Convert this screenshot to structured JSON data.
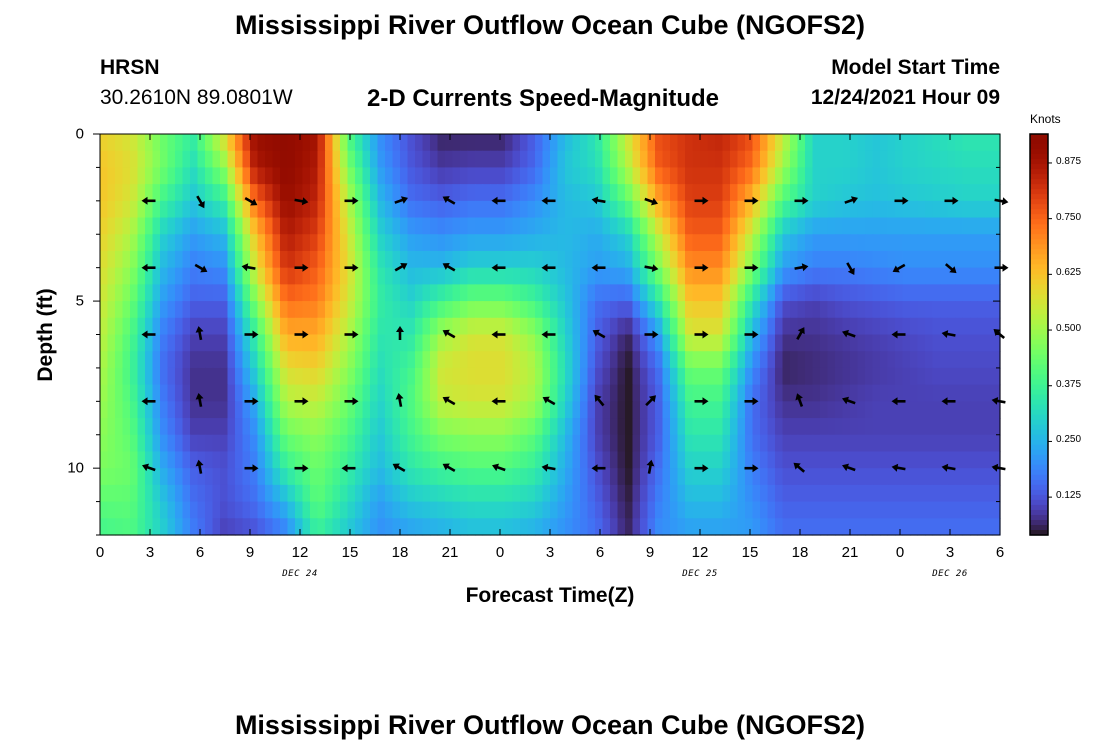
{
  "page_title": "Mississippi River Outflow Ocean Cube (NGOFS2)",
  "station": {
    "code": "HRSN",
    "coords": "30.2610N  89.0801W"
  },
  "subtitle": "2-D Currents Speed-Magnitude",
  "model_start": {
    "label": "Model Start Time",
    "value": "12/24/2021 Hour 09"
  },
  "second_panel_title": "Mississippi River Outflow Ocean Cube (NGOFS2)",
  "chart_data": {
    "type": "heatmap",
    "title": "2-D Currents Speed-Magnitude",
    "xlabel": "Forecast Time(Z)",
    "ylabel": "Depth (ft)",
    "x_tick_labels": [
      "0",
      "3",
      "6",
      "9",
      "12",
      "15",
      "18",
      "21",
      "0",
      "3",
      "6",
      "9",
      "12",
      "15",
      "18",
      "21",
      "0",
      "3",
      "6"
    ],
    "x_tick_hours": [
      0,
      3,
      6,
      9,
      12,
      15,
      18,
      21,
      24,
      27,
      30,
      33,
      36,
      39,
      42,
      45,
      48,
      51,
      54
    ],
    "day_labels": [
      {
        "text": "DEC 24",
        "hour": 12
      },
      {
        "text": "DEC 25",
        "hour": 36
      },
      {
        "text": "DEC 26",
        "hour": 51
      }
    ],
    "y_tick_labels": [
      "0",
      "5",
      "10"
    ],
    "y_tick_values": [
      0,
      5,
      10
    ],
    "xlim_hours": [
      0,
      54
    ],
    "ylim_ft": [
      0,
      12
    ],
    "y_inverted": true,
    "colorbar": {
      "title": "Knots",
      "range": [
        0.04,
        0.94
      ],
      "ticks": [
        "0.125",
        "0.250",
        "0.375",
        "0.500",
        "0.625",
        "0.750",
        "0.875"
      ],
      "tick_values": [
        0.125,
        0.25,
        0.375,
        0.5,
        0.625,
        0.75,
        0.875
      ],
      "colormap": "turbo"
    },
    "depths_ft": [
      0,
      1,
      2,
      3,
      4,
      5,
      6,
      7,
      8,
      9,
      10,
      11,
      12
    ],
    "speed_knots_by_depth": [
      [
        0.6,
        0.56,
        0.44,
        0.36,
        0.58,
        0.9,
        0.92,
        0.88,
        0.4,
        0.2,
        0.12,
        0.06,
        0.06,
        0.06,
        0.14,
        0.26,
        0.34,
        0.56,
        0.78,
        0.82,
        0.84,
        0.78,
        0.55,
        0.3,
        0.3,
        0.28,
        0.3,
        0.32,
        0.34,
        0.34
      ],
      [
        0.62,
        0.58,
        0.45,
        0.32,
        0.48,
        0.86,
        0.92,
        0.86,
        0.46,
        0.22,
        0.13,
        0.09,
        0.1,
        0.1,
        0.15,
        0.28,
        0.32,
        0.52,
        0.76,
        0.82,
        0.82,
        0.74,
        0.5,
        0.3,
        0.3,
        0.28,
        0.3,
        0.31,
        0.32,
        0.32
      ],
      [
        0.62,
        0.56,
        0.38,
        0.28,
        0.36,
        0.74,
        0.9,
        0.84,
        0.52,
        0.26,
        0.16,
        0.14,
        0.16,
        0.16,
        0.2,
        0.26,
        0.28,
        0.42,
        0.66,
        0.8,
        0.8,
        0.64,
        0.4,
        0.3,
        0.28,
        0.27,
        0.28,
        0.29,
        0.3,
        0.3
      ],
      [
        0.6,
        0.52,
        0.3,
        0.22,
        0.26,
        0.62,
        0.86,
        0.8,
        0.56,
        0.3,
        0.22,
        0.2,
        0.22,
        0.22,
        0.24,
        0.26,
        0.24,
        0.3,
        0.54,
        0.76,
        0.76,
        0.54,
        0.28,
        0.22,
        0.22,
        0.22,
        0.22,
        0.22,
        0.22,
        0.22
      ],
      [
        0.58,
        0.48,
        0.26,
        0.18,
        0.2,
        0.56,
        0.82,
        0.76,
        0.58,
        0.34,
        0.26,
        0.26,
        0.3,
        0.3,
        0.3,
        0.26,
        0.22,
        0.24,
        0.46,
        0.7,
        0.7,
        0.46,
        0.22,
        0.18,
        0.18,
        0.19,
        0.2,
        0.2,
        0.2,
        0.2
      ],
      [
        0.56,
        0.44,
        0.22,
        0.14,
        0.14,
        0.46,
        0.74,
        0.72,
        0.56,
        0.36,
        0.3,
        0.38,
        0.44,
        0.44,
        0.38,
        0.28,
        0.16,
        0.14,
        0.34,
        0.62,
        0.62,
        0.34,
        0.12,
        0.1,
        0.12,
        0.13,
        0.14,
        0.14,
        0.14,
        0.14
      ],
      [
        0.54,
        0.4,
        0.18,
        0.1,
        0.1,
        0.36,
        0.66,
        0.66,
        0.52,
        0.34,
        0.34,
        0.5,
        0.56,
        0.56,
        0.48,
        0.3,
        0.14,
        0.06,
        0.22,
        0.56,
        0.56,
        0.26,
        0.08,
        0.08,
        0.09,
        0.1,
        0.11,
        0.12,
        0.12,
        0.12
      ],
      [
        0.52,
        0.38,
        0.16,
        0.08,
        0.08,
        0.3,
        0.58,
        0.6,
        0.48,
        0.32,
        0.38,
        0.56,
        0.58,
        0.58,
        0.52,
        0.32,
        0.12,
        0.04,
        0.16,
        0.44,
        0.44,
        0.2,
        0.06,
        0.07,
        0.08,
        0.09,
        0.1,
        0.11,
        0.11,
        0.11
      ],
      [
        0.5,
        0.4,
        0.18,
        0.08,
        0.08,
        0.24,
        0.52,
        0.54,
        0.44,
        0.3,
        0.4,
        0.54,
        0.56,
        0.56,
        0.5,
        0.3,
        0.1,
        0.04,
        0.14,
        0.38,
        0.38,
        0.16,
        0.08,
        0.08,
        0.09,
        0.1,
        0.1,
        0.1,
        0.1,
        0.1
      ],
      [
        0.48,
        0.42,
        0.2,
        0.1,
        0.1,
        0.2,
        0.44,
        0.48,
        0.4,
        0.28,
        0.38,
        0.46,
        0.48,
        0.48,
        0.42,
        0.26,
        0.1,
        0.04,
        0.14,
        0.34,
        0.34,
        0.16,
        0.1,
        0.1,
        0.1,
        0.1,
        0.1,
        0.1,
        0.1,
        0.1
      ],
      [
        0.46,
        0.44,
        0.24,
        0.14,
        0.12,
        0.18,
        0.36,
        0.44,
        0.36,
        0.26,
        0.34,
        0.38,
        0.4,
        0.4,
        0.36,
        0.24,
        0.12,
        0.04,
        0.16,
        0.3,
        0.3,
        0.18,
        0.12,
        0.12,
        0.12,
        0.12,
        0.12,
        0.12,
        0.12,
        0.12
      ],
      [
        0.42,
        0.42,
        0.28,
        0.16,
        0.12,
        0.16,
        0.26,
        0.42,
        0.32,
        0.22,
        0.28,
        0.3,
        0.32,
        0.32,
        0.3,
        0.22,
        0.14,
        0.05,
        0.18,
        0.26,
        0.26,
        0.2,
        0.14,
        0.14,
        0.14,
        0.14,
        0.14,
        0.14,
        0.14,
        0.14
      ],
      [
        0.38,
        0.4,
        0.3,
        0.18,
        0.1,
        0.12,
        0.18,
        0.36,
        0.28,
        0.2,
        0.22,
        0.24,
        0.26,
        0.26,
        0.24,
        0.2,
        0.16,
        0.06,
        0.2,
        0.22,
        0.22,
        0.22,
        0.16,
        0.16,
        0.16,
        0.16,
        0.16,
        0.16,
        0.16,
        0.16
      ]
    ],
    "vector_depths_ft": [
      2,
      4,
      6,
      8,
      10
    ],
    "vector_hours": [
      3,
      6,
      9,
      12,
      15,
      18,
      21,
      24,
      27,
      30,
      33,
      36,
      39,
      42,
      45,
      48,
      51,
      54
    ],
    "vector_directions_deg": [
      [
        180,
        -60,
        -30,
        -10,
        0,
        20,
        150,
        180,
        180,
        170,
        -20,
        0,
        0,
        0,
        20,
        0,
        0,
        -10
      ],
      [
        180,
        -30,
        170,
        0,
        0,
        30,
        150,
        180,
        180,
        180,
        -10,
        0,
        0,
        10,
        -60,
        -150,
        -40,
        0
      ],
      [
        180,
        100,
        0,
        0,
        0,
        90,
        150,
        180,
        180,
        150,
        0,
        0,
        0,
        60,
        160,
        180,
        170,
        140
      ],
      [
        180,
        100,
        0,
        0,
        0,
        100,
        150,
        180,
        150,
        130,
        45,
        0,
        0,
        110,
        160,
        180,
        180,
        170
      ],
      [
        160,
        100,
        0,
        0,
        180,
        150,
        150,
        160,
        170,
        180,
        80,
        0,
        0,
        140,
        160,
        170,
        170,
        170
      ]
    ]
  }
}
